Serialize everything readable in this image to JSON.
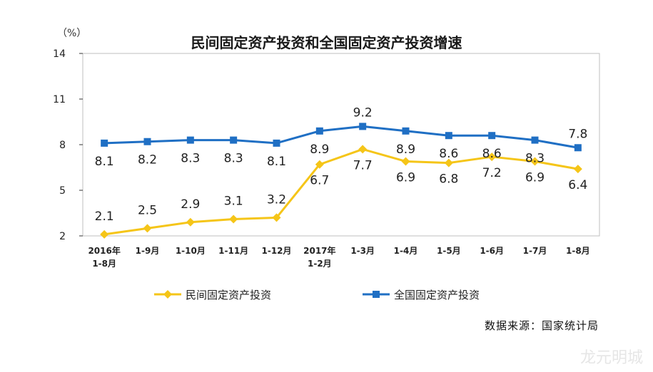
{
  "header": {
    "title": "民间固定资产投资和全国固定资产投资增速",
    "unit": "（%）"
  },
  "footer": {
    "source": "数据来源：国家统计局",
    "watermark": "龙元明城"
  },
  "colors": {
    "series_private": "#F5C518",
    "series_national": "#1F6FC4",
    "axis": "#333333",
    "plot_border": "#BFBFBF"
  },
  "chart_data": {
    "type": "line",
    "categories": [
      [
        "2016年",
        "1-8月"
      ],
      [
        "1-9月"
      ],
      [
        "1-10月"
      ],
      [
        "1-11月"
      ],
      [
        "1-12月"
      ],
      [
        "2017年",
        "1-2月"
      ],
      [
        "1-3月"
      ],
      [
        "1-4月"
      ],
      [
        "1-5月"
      ],
      [
        "1-6月"
      ],
      [
        "1-7月"
      ],
      [
        "1-8月"
      ]
    ],
    "series": [
      {
        "name": "民间固定资产投资",
        "color_key": "series_private",
        "marker": "diamond",
        "values": [
          2.1,
          2.5,
          2.9,
          3.1,
          3.2,
          6.7,
          7.7,
          6.9,
          6.8,
          7.2,
          6.9,
          6.4
        ],
        "labels": [
          "2.1",
          "2.5",
          "2.9",
          "3.1",
          "3.2",
          "6.7",
          "7.7",
          "6.9",
          "6.8",
          "7.2",
          "6.9",
          "6.4"
        ]
      },
      {
        "name": "全国固定资产投资",
        "color_key": "series_national",
        "marker": "square",
        "values": [
          8.1,
          8.2,
          8.3,
          8.3,
          8.1,
          8.9,
          9.2,
          8.9,
          8.6,
          8.6,
          8.3,
          7.8
        ],
        "labels": [
          "8.1",
          "8.2",
          "8.3",
          "8.3",
          "8.1",
          "8.9",
          "9.2",
          "8.9",
          "8.6",
          "8.6",
          "8.3",
          "7.8"
        ]
      }
    ],
    "ylim": [
      2,
      14
    ],
    "yticks": [
      "2",
      "5",
      "8",
      "11",
      "14"
    ],
    "grid": false,
    "legend": "bottom"
  }
}
